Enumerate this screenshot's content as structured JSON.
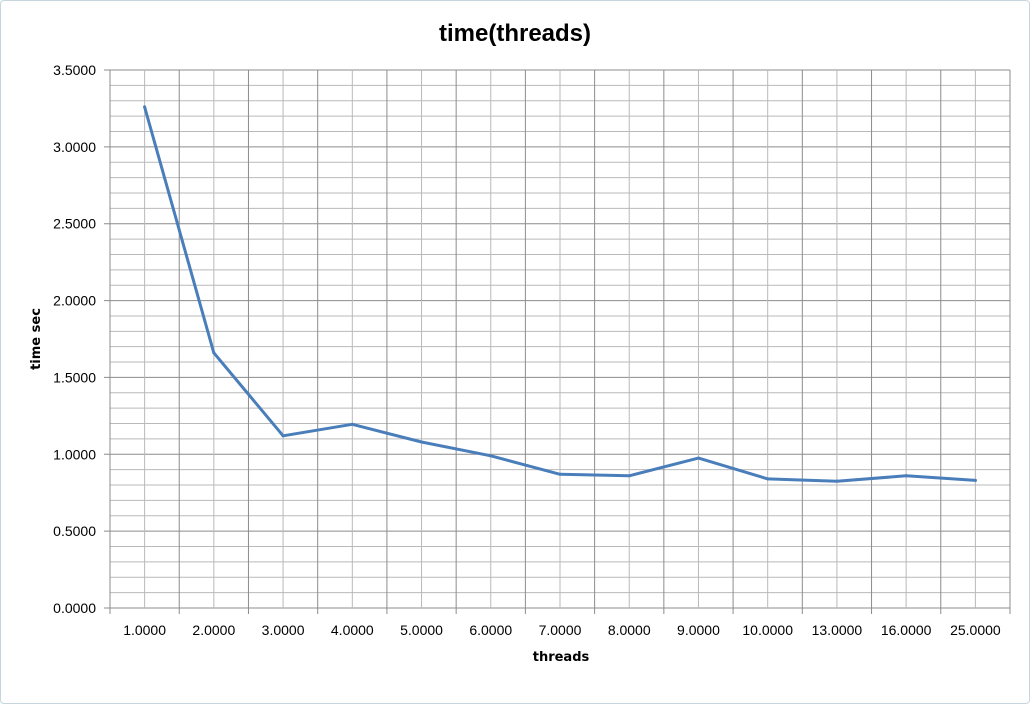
{
  "chart_data": {
    "type": "line",
    "title": "time(threads)",
    "xlabel": "threads",
    "ylabel": "time sec",
    "categories": [
      "1.0000",
      "2.0000",
      "3.0000",
      "4.0000",
      "5.0000",
      "6.0000",
      "7.0000",
      "8.0000",
      "9.0000",
      "10.0000",
      "13.0000",
      "16.0000",
      "25.0000"
    ],
    "series": [
      {
        "values": [
          3.26,
          1.66,
          1.12,
          1.195,
          1.08,
          0.99,
          0.87,
          0.86,
          0.975,
          0.84,
          0.825,
          0.86,
          0.83
        ]
      }
    ],
    "ylim": [
      0,
      3.5
    ],
    "yticks": [
      "0.0000",
      "0.5000",
      "1.0000",
      "1.5000",
      "2.0000",
      "2.5000",
      "3.0000",
      "3.5000"
    ],
    "grid": true,
    "line_color": "#4a7ebb",
    "gridline_color": "#8c8c8c"
  }
}
